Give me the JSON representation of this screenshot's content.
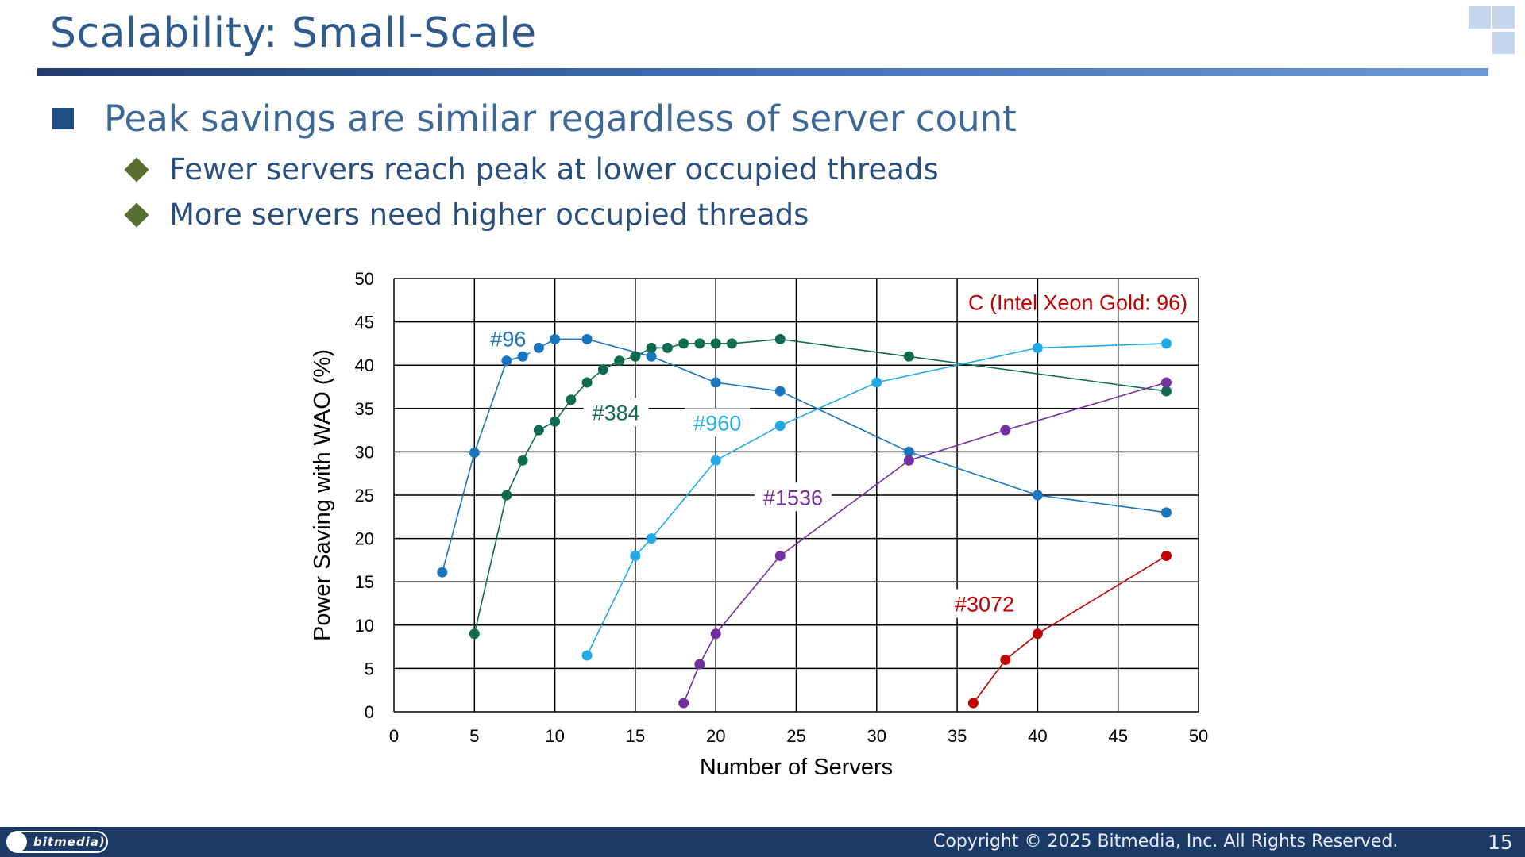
{
  "slide": {
    "title": "Scalability: Small-Scale",
    "bullet_main": "Peak savings are similar regardless of server count",
    "sub_bullets": [
      "Fewer servers reach peak at lower occupied threads",
      "More servers need higher occupied threads"
    ]
  },
  "footer": {
    "logo_text": "bitmedia)",
    "copyright": "Copyright © 2025 Bitmedia, Inc. All Rights Reserved.",
    "page_number": "15"
  },
  "colors": {
    "title": "#2e5a8e",
    "accent_dark": "#1c3a66",
    "grid": "#000000"
  },
  "chart_data": {
    "type": "line",
    "title": "C (Intel Xeon Gold: 96)",
    "xlabel": "Number of Servers",
    "ylabel": "Power Saving with WAO (%)",
    "xlim": [
      0,
      50
    ],
    "ylim": [
      0,
      50
    ],
    "xticks": [
      0,
      5,
      10,
      15,
      20,
      25,
      30,
      35,
      40,
      45,
      50
    ],
    "yticks": [
      0,
      5,
      10,
      15,
      20,
      25,
      30,
      35,
      40,
      45,
      50
    ],
    "grid": true,
    "series": [
      {
        "name": "#96",
        "color": "#1a75bf",
        "label_at": [
          7.1,
          43
        ],
        "points": [
          [
            3,
            16.1
          ],
          [
            5,
            29.9
          ],
          [
            7,
            40.5
          ],
          [
            8,
            41
          ],
          [
            9,
            42
          ],
          [
            10,
            43
          ],
          [
            12,
            43
          ],
          [
            16,
            41
          ],
          [
            20,
            38
          ],
          [
            24,
            37
          ],
          [
            32,
            30
          ],
          [
            40,
            25
          ],
          [
            48,
            23
          ]
        ]
      },
      {
        "name": "#384",
        "color": "#0f6b4f",
        "label_at": [
          13.8,
          34.5
        ],
        "points": [
          [
            5,
            9
          ],
          [
            7,
            25
          ],
          [
            8,
            29
          ],
          [
            9,
            32.5
          ],
          [
            10,
            33.5
          ],
          [
            11,
            36
          ],
          [
            12,
            38
          ],
          [
            13,
            39.5
          ],
          [
            14,
            40.5
          ],
          [
            15,
            41
          ],
          [
            16,
            42
          ],
          [
            17,
            42
          ],
          [
            18,
            42.5
          ],
          [
            19,
            42.5
          ],
          [
            20,
            42.5
          ],
          [
            21,
            42.5
          ],
          [
            24,
            43
          ],
          [
            32,
            41
          ],
          [
            48,
            37
          ]
        ]
      },
      {
        "name": "#960",
        "color": "#22aae6",
        "label_at": [
          20.1,
          33.3
        ],
        "points": [
          [
            12,
            6.5
          ],
          [
            15,
            18
          ],
          [
            16,
            20
          ],
          [
            20,
            29
          ],
          [
            24,
            33
          ],
          [
            30,
            38
          ],
          [
            40,
            42
          ],
          [
            48,
            42.5
          ]
        ]
      },
      {
        "name": "#1536",
        "color": "#7530a0",
        "label_at": [
          24.8,
          24.7
        ],
        "points": [
          [
            18,
            1
          ],
          [
            19,
            5.5
          ],
          [
            20,
            9
          ],
          [
            24,
            18
          ],
          [
            32,
            29
          ],
          [
            38,
            32.5
          ],
          [
            48,
            38
          ]
        ]
      },
      {
        "name": "#3072",
        "color": "#c00000",
        "label_at": [
          36.7,
          12.4
        ],
        "points": [
          [
            36,
            1
          ],
          [
            38,
            6
          ],
          [
            40,
            9
          ],
          [
            48,
            18
          ]
        ]
      }
    ]
  }
}
